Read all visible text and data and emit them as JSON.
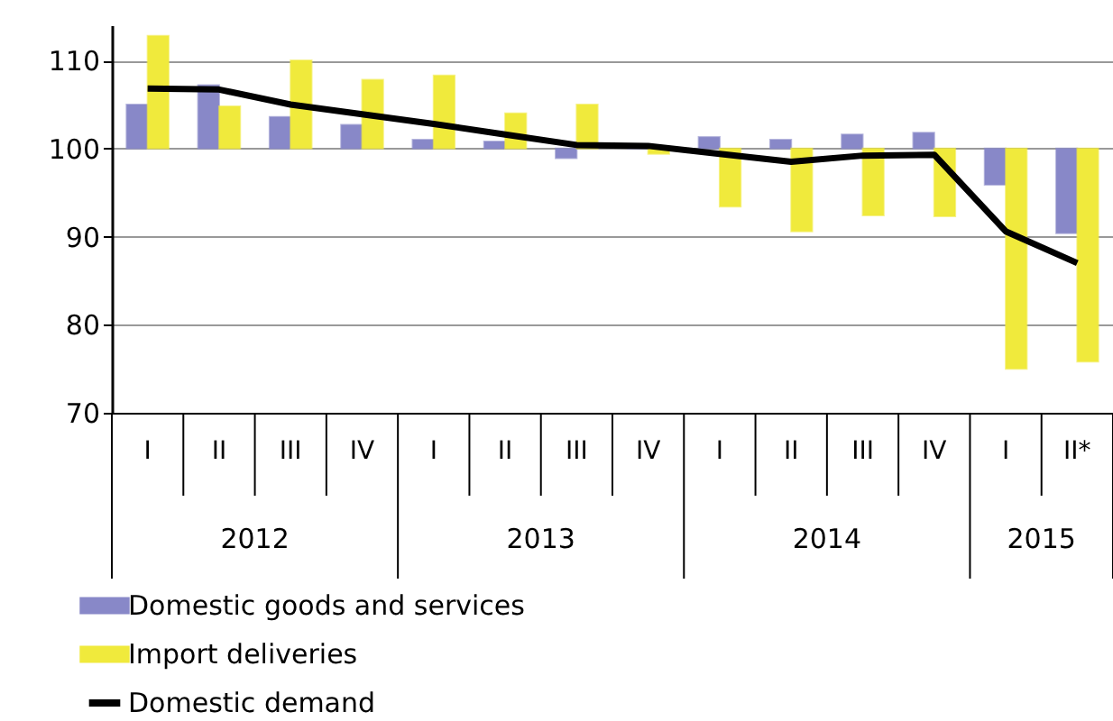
{
  "chart_data": {
    "type": "bar",
    "categories": [
      "I",
      "II",
      "III",
      "IV",
      "I",
      "II",
      "III",
      "IV",
      "I",
      "II",
      "III",
      "IV",
      "I",
      "II*"
    ],
    "annotations": [
      "2012",
      "2013",
      "2014",
      "2015"
    ],
    "series": [
      {
        "name": "Domestic goods and services",
        "color": "#8888c8",
        "base": [
          100,
          100,
          100,
          100,
          100,
          100,
          100,
          100,
          100,
          100,
          100,
          100,
          100,
          100
        ],
        "values": [
          5.0,
          7.2,
          3.6,
          2.7,
          1.0,
          0.8,
          -1.1,
          0.0,
          1.3,
          1.0,
          1.6,
          1.8,
          -4.1,
          -9.6
        ]
      },
      {
        "name": "Import deliveries",
        "color": "#f0ea3c",
        "base": [
          100,
          100,
          100,
          100,
          100,
          100,
          100,
          100,
          100,
          100,
          100,
          100,
          100,
          100
        ],
        "values": [
          12.8,
          4.8,
          10.0,
          7.8,
          8.3,
          4.0,
          5.0,
          -0.6,
          -6.6,
          -9.4,
          -7.6,
          -7.7,
          -25.0,
          -24.2
        ]
      },
      {
        "name": "Domestic demand",
        "type": "line",
        "color": "#000000",
        "values": [
          106.8,
          106.7,
          105.0,
          103.9,
          102.8,
          101.6,
          100.4,
          100.3,
          99.4,
          98.5,
          99.2,
          99.3,
          90.6,
          87.0
        ]
      }
    ],
    "ylim": [
      70,
      114
    ],
    "yticks": [
      70,
      80,
      90,
      100,
      110
    ],
    "grid": "y",
    "legend": "bottom",
    "line_style": "solid",
    "marker": "none"
  }
}
